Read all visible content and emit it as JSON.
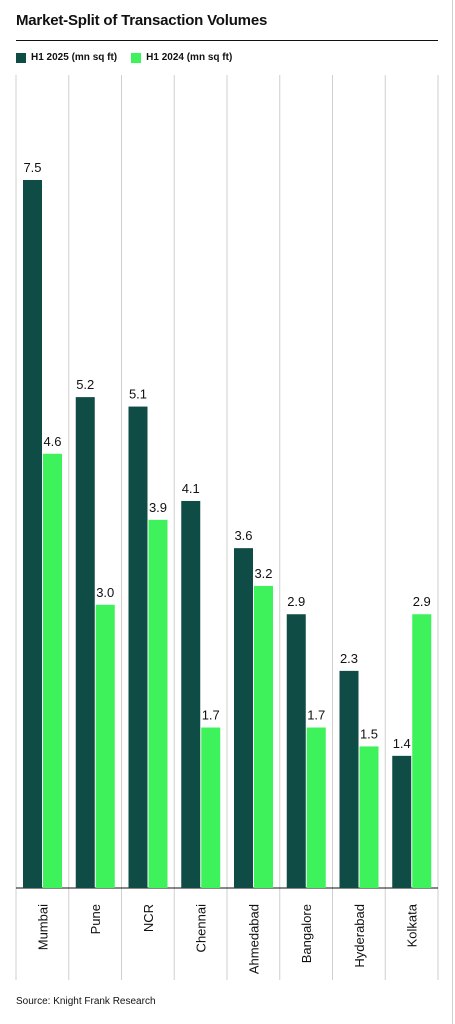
{
  "title": "Market-Split of Transaction Volumes",
  "source": "Source: Knight Frank Research",
  "colors": {
    "h1_2025": "#0f4c46",
    "h1_2024": "#3df25a"
  },
  "chart_data": {
    "type": "bar",
    "title": "Market-Split of Transaction Volumes",
    "categories": [
      "Mumbai",
      "Pune",
      "NCR",
      "Chennai",
      "Ahmedabad",
      "Bangalore",
      "Hyderabad",
      "Kolkata"
    ],
    "series": [
      {
        "name": "H1 2025 (mn sq ft)",
        "color": "#0f4c46",
        "values": [
          7.5,
          5.2,
          5.1,
          4.1,
          3.6,
          2.9,
          2.3,
          1.4
        ],
        "labels": [
          "7.5",
          "5.2",
          "5.1",
          "4.1",
          "3.6",
          "2.9",
          "2.3",
          "1.4"
        ]
      },
      {
        "name": "H1 2024 (mn sq ft)",
        "color": "#3df25a",
        "values": [
          4.6,
          3.0,
          3.9,
          1.7,
          3.2,
          1.7,
          1.5,
          2.9
        ],
        "labels": [
          "4.6",
          "3.0",
          "3.9",
          "1.7",
          "3.2",
          "1.7",
          "1.5",
          "2.9"
        ]
      }
    ],
    "ylim": [
      0,
      7.5
    ],
    "grid": false,
    "legend_position": "top-left"
  }
}
